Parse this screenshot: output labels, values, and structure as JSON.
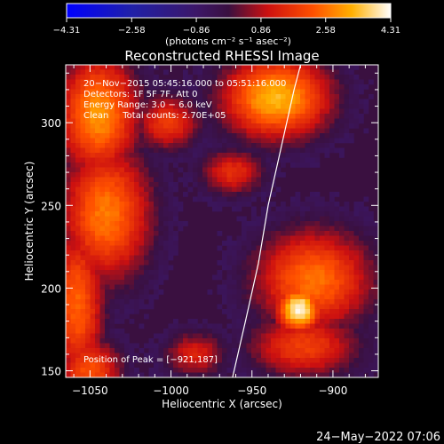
{
  "chart_data": {
    "type": "heatmap",
    "title": "Reconstructed RHESSI Image",
    "xlabel": "Heliocentric X (arcsec)",
    "ylabel": "Heliocentric Y (arcsec)",
    "xlim": [
      -1065,
      -872
    ],
    "ylim": [
      146,
      335
    ],
    "x_ticks": [
      -1050,
      -1000,
      -950,
      -900
    ],
    "x_tick_labels": [
      "−1050",
      "−1000",
      "−950",
      "−900"
    ],
    "y_ticks": [
      150,
      200,
      250,
      300
    ],
    "y_tick_labels": [
      "150",
      "200",
      "250",
      "300"
    ],
    "colorbar": {
      "min": -4.31,
      "max": 4.31,
      "ticks": [
        -4.31,
        -2.58,
        -0.86,
        0.86,
        2.58,
        4.31
      ],
      "tick_labels": [
        "−4.31",
        "−2.58",
        "−0.86",
        "0.86",
        "2.58",
        "4.31"
      ],
      "units": "(photons cm⁻² s⁻¹ asec⁻²)"
    },
    "info_lines": [
      "20−Nov−2015 05:45:16.000 to 05:51:16.000",
      "Detectors: 1F 5F 7F, Att 0",
      "Energy Range: 3.0 − 6.0 keV",
      "Clean     Total counts: 2.70E+05"
    ],
    "peak_label": "Position of Peak = [−921,187]",
    "peak": [
      -921,
      187
    ],
    "limb_curve": [
      [
        -962,
        146
      ],
      [
        -954,
        180
      ],
      [
        -946,
        215
      ],
      [
        -940,
        250
      ],
      [
        -932,
        285
      ],
      [
        -924,
        320
      ],
      [
        -920,
        335
      ]
    ],
    "sources": [
      {
        "x": -1045,
        "y": 305,
        "sx": 18,
        "sy": 26,
        "amp": 3.0
      },
      {
        "x": -1040,
        "y": 245,
        "sx": 20,
        "sy": 30,
        "amp": 2.7
      },
      {
        "x": -1058,
        "y": 190,
        "sx": 12,
        "sy": 35,
        "amp": 2.4
      },
      {
        "x": -1050,
        "y": 150,
        "sx": 14,
        "sy": 14,
        "amp": 2.2
      },
      {
        "x": -1002,
        "y": 300,
        "sx": 14,
        "sy": 12,
        "amp": 1.8
      },
      {
        "x": -935,
        "y": 315,
        "sx": 24,
        "sy": 18,
        "amp": 3.4
      },
      {
        "x": -962,
        "y": 270,
        "sx": 14,
        "sy": 10,
        "amp": 1.6
      },
      {
        "x": -921,
        "y": 187,
        "sx": 10,
        "sy": 10,
        "amp": 4.31
      },
      {
        "x": -912,
        "y": 205,
        "sx": 26,
        "sy": 22,
        "amp": 2.6
      },
      {
        "x": -918,
        "y": 165,
        "sx": 24,
        "sy": 14,
        "amp": 1.9
      },
      {
        "x": -985,
        "y": 160,
        "sx": 14,
        "sy": 10,
        "amp": 1.3
      }
    ],
    "background_level": -0.86,
    "grid": false
  },
  "footer": {
    "date": "24−May−2022 07:06"
  }
}
